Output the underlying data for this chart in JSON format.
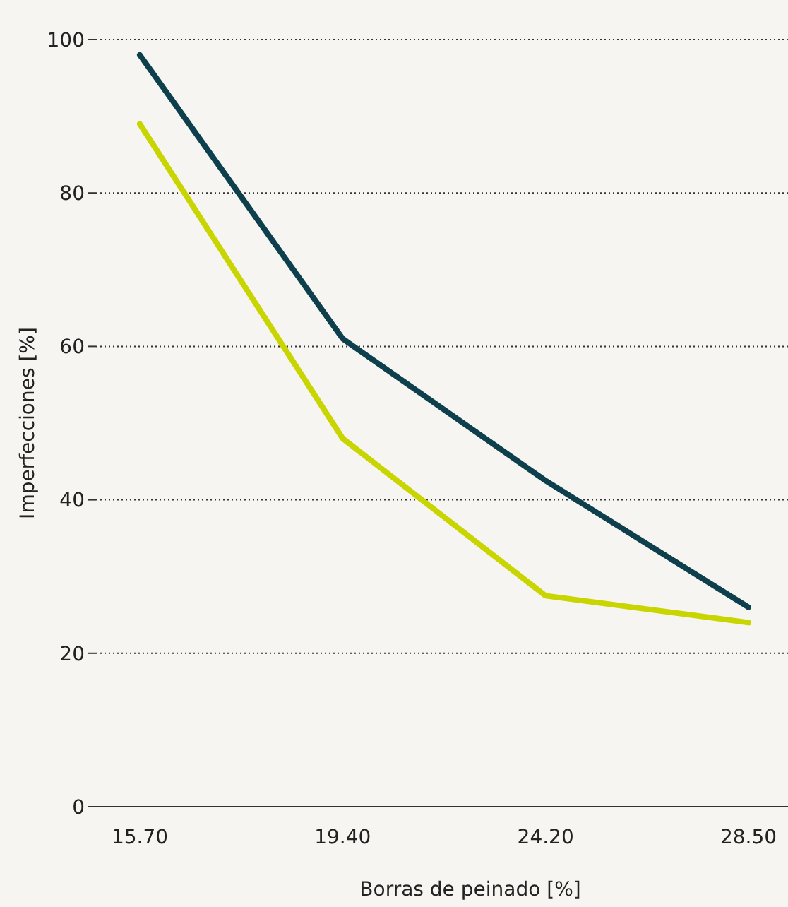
{
  "chart_data": {
    "type": "line",
    "xlabel": "Borras de peinado [%]",
    "ylabel": "Imperfecciones [%]",
    "categories": [
      "15.70",
      "19.40",
      "24.20",
      "28.50"
    ],
    "series": [
      {
        "color": "#0e3f4c",
        "values": [
          98,
          61,
          42.5,
          26
        ]
      },
      {
        "color": "#c9d500",
        "values": [
          89,
          48,
          27.5,
          24
        ]
      }
    ],
    "ylim": [
      0,
      100
    ],
    "yticks": [
      0,
      20,
      40,
      60,
      80,
      100
    ],
    "grid": "y",
    "marker": "none",
    "line_style": "solid"
  }
}
